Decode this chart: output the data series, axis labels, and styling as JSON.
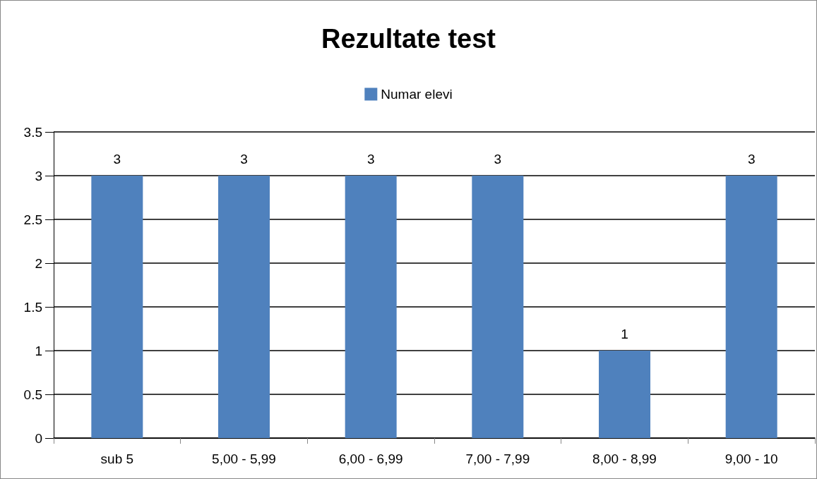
{
  "chart_data": {
    "type": "bar",
    "title": "Rezultate test",
    "categories": [
      "sub 5",
      "5,00 - 5,99",
      "6,00 - 6,99",
      "7,00 - 7,99",
      "8,00 - 8,99",
      "9,00 - 10"
    ],
    "series": [
      {
        "name": "Numar elevi",
        "color": "#4f81bd",
        "values": [
          3,
          3,
          3,
          3,
          1,
          3
        ]
      }
    ],
    "ylim": [
      0,
      3.5
    ],
    "yticks": [
      0,
      0.5,
      1,
      1.5,
      2,
      2.5,
      3,
      3.5
    ],
    "grid": "y",
    "legend": "top",
    "data_labels": true
  }
}
